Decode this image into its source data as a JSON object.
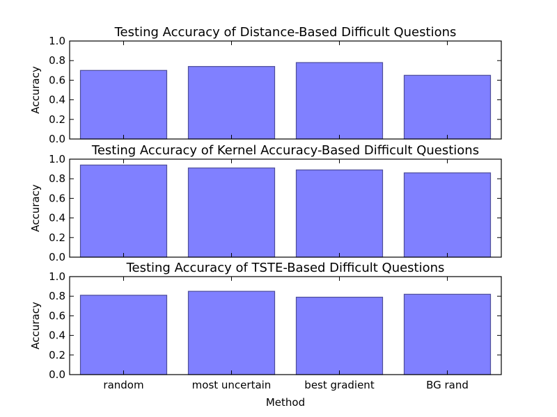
{
  "chart_data": [
    {
      "type": "bar",
      "title": "Testing Accuracy of Distance-Based Difficult Questions",
      "ylabel": "Accuracy",
      "xlabel": "",
      "ylim": [
        0,
        1.0
      ],
      "yticks": [
        "0.0",
        "0.2",
        "0.4",
        "0.6",
        "0.8",
        "1.0"
      ],
      "categories": [
        "random",
        "most uncertain",
        "best gradient",
        "BG rand"
      ],
      "values": [
        0.7,
        0.74,
        0.78,
        0.65
      ],
      "show_xticklabels": false
    },
    {
      "type": "bar",
      "title": "Testing Accuracy of Kernel Accuracy-Based Difficult Questions",
      "ylabel": "Accuracy",
      "xlabel": "",
      "ylim": [
        0,
        1.0
      ],
      "yticks": [
        "0.0",
        "0.2",
        "0.4",
        "0.6",
        "0.8",
        "1.0"
      ],
      "categories": [
        "random",
        "most uncertain",
        "best gradient",
        "BG rand"
      ],
      "values": [
        0.94,
        0.91,
        0.89,
        0.86
      ],
      "show_xticklabels": false
    },
    {
      "type": "bar",
      "title": "Testing Accuracy of TSTE-Based Difficult Questions",
      "ylabel": "Accuracy",
      "xlabel": "Method",
      "ylim": [
        0,
        1.0
      ],
      "yticks": [
        "0.0",
        "0.2",
        "0.4",
        "0.6",
        "0.8",
        "1.0"
      ],
      "categories": [
        "random",
        "most uncertain",
        "best gradient",
        "BG rand"
      ],
      "values": [
        0.81,
        0.85,
        0.79,
        0.82
      ],
      "show_xticklabels": true
    }
  ],
  "style": {
    "bar_fill": "#8080ff",
    "bar_edge": "#4d4d99",
    "axis_color": "#000000"
  }
}
